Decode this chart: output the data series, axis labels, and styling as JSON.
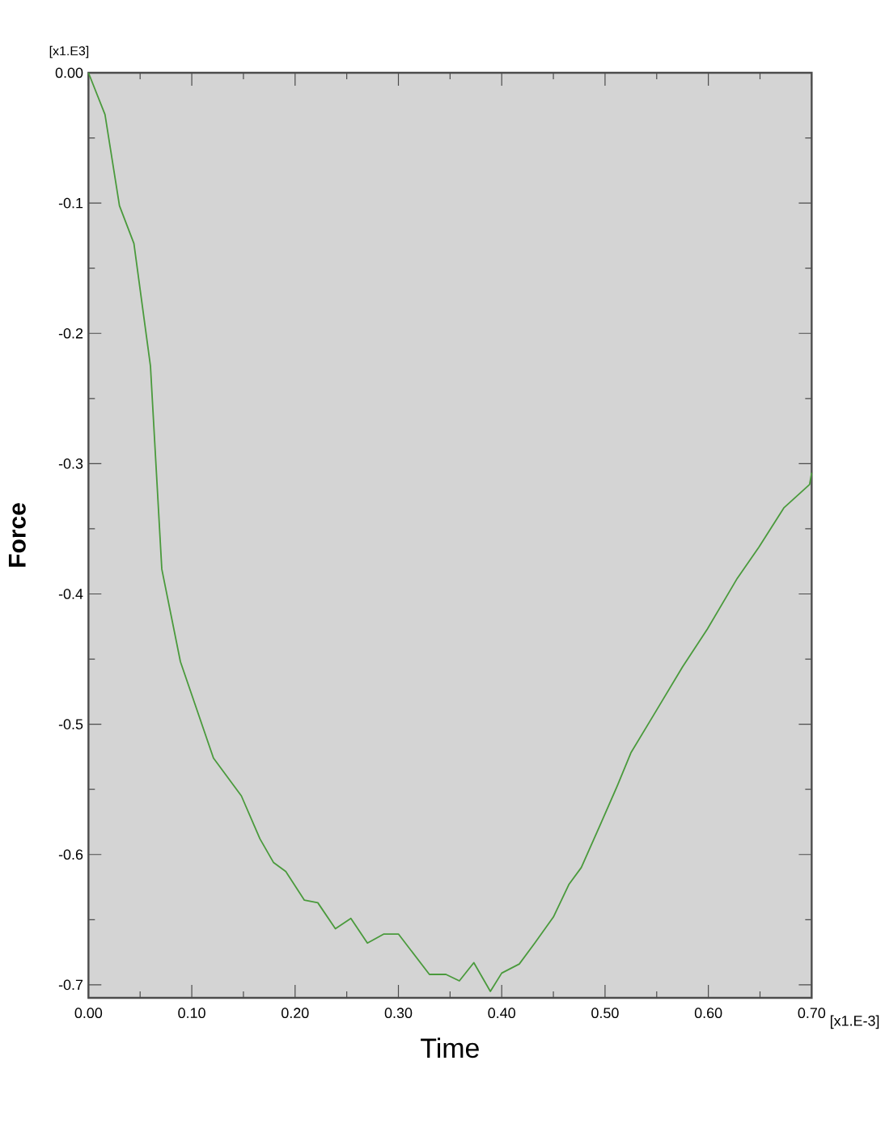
{
  "chart_data": {
    "type": "line",
    "xlabel": "Time",
    "ylabel": "Force",
    "annotations": [
      "[x1.E3]",
      "[x1.E-3]"
    ],
    "xlim": [
      0,
      0.7
    ],
    "ylim": [
      -0.71,
      0
    ],
    "xticks": [
      {
        "value": 0,
        "label": "0.00"
      },
      {
        "value": 0.1,
        "label": "0.10"
      },
      {
        "value": 0.2,
        "label": "0.20"
      },
      {
        "value": 0.3,
        "label": "0.30"
      },
      {
        "value": 0.4,
        "label": "0.40"
      },
      {
        "value": 0.5,
        "label": "0.50"
      },
      {
        "value": 0.6,
        "label": "0.60"
      },
      {
        "value": 0.7,
        "label": "0.70"
      }
    ],
    "yticks": [
      {
        "value": 0,
        "label": "0.00"
      },
      {
        "value": -0.1,
        "label": "-0.1"
      },
      {
        "value": -0.2,
        "label": "-0.2"
      },
      {
        "value": -0.3,
        "label": "-0.3"
      },
      {
        "value": -0.4,
        "label": "-0.4"
      },
      {
        "value": -0.5,
        "label": "-0.5"
      },
      {
        "value": -0.6,
        "label": "-0.6"
      },
      {
        "value": -0.7,
        "label": "-0.7"
      }
    ],
    "grid": false,
    "x": [
      0,
      0.016,
      0.03,
      0.044,
      0.06,
      0.071,
      0.089,
      0.121,
      0.148,
      0.166,
      0.179,
      0.191,
      0.209,
      0.222,
      0.239,
      0.254,
      0.27,
      0.286,
      0.3,
      0.33,
      0.346,
      0.359,
      0.373,
      0.389,
      0.4,
      0.417,
      0.432,
      0.45,
      0.465,
      0.477,
      0.496,
      0.512,
      0.525,
      0.547,
      0.575,
      0.599,
      0.628,
      0.649,
      0.673,
      0.698,
      0.7
    ],
    "series": [
      {
        "color": "#4a9a3c",
        "values": [
          0,
          -0.032,
          -0.102,
          -0.131,
          -0.225,
          -0.381,
          -0.452,
          -0.526,
          -0.555,
          -0.588,
          -0.606,
          -0.613,
          -0.635,
          -0.637,
          -0.657,
          -0.649,
          -0.668,
          -0.661,
          -0.661,
          -0.692,
          -0.692,
          -0.697,
          -0.683,
          -0.705,
          -0.691,
          -0.684,
          -0.668,
          -0.648,
          -0.623,
          -0.61,
          -0.576,
          -0.547,
          -0.522,
          -0.493,
          -0.456,
          -0.427,
          -0.388,
          -0.364,
          -0.334,
          -0.316,
          -0.307
        ]
      }
    ]
  }
}
